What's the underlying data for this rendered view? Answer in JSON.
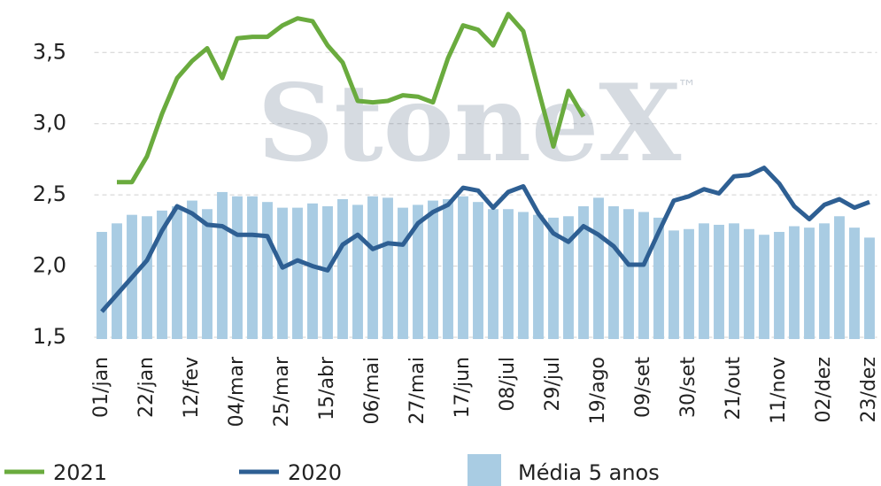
{
  "chart_data": {
    "type": "bar_line",
    "watermark": "StoneX",
    "watermark_mark": "™",
    "categories": [
      "01/jan",
      null,
      null,
      "22/jan",
      null,
      null,
      "12/fev",
      null,
      null,
      "04/mar",
      null,
      null,
      "25/mar",
      null,
      null,
      "15/abr",
      null,
      null,
      "06/mai",
      null,
      null,
      "27/mai",
      null,
      null,
      "17/jun",
      null,
      null,
      "08/jul",
      null,
      null,
      "29/jul",
      null,
      null,
      "19/ago",
      null,
      null,
      "09/set",
      null,
      null,
      "30/set",
      null,
      null,
      "21/out",
      null,
      null,
      "11/nov",
      null,
      null,
      "02/dez",
      null,
      null,
      "23/dez"
    ],
    "series": [
      {
        "name": "2021",
        "kind": "line",
        "color": "#6aab3e",
        "values": [
          null,
          2.59,
          2.59,
          2.77,
          3.07,
          3.32,
          3.44,
          3.53,
          3.32,
          3.6,
          3.61,
          3.61,
          3.69,
          3.74,
          3.72,
          3.55,
          3.43,
          3.16,
          3.15,
          3.16,
          3.2,
          3.19,
          3.15,
          3.46,
          3.69,
          3.66,
          3.55,
          3.77,
          3.65,
          3.24,
          2.84,
          3.23,
          3.05,
          null,
          null,
          null,
          null,
          null,
          null,
          null,
          null,
          null,
          null,
          null,
          null,
          null,
          null,
          null,
          null,
          null,
          null,
          null
        ]
      },
      {
        "name": "2020",
        "kind": "line",
        "color": "#2e5f93",
        "values": [
          1.68,
          1.8,
          1.92,
          2.04,
          2.25,
          2.42,
          2.37,
          2.29,
          2.28,
          2.22,
          2.22,
          2.21,
          1.99,
          2.04,
          2.0,
          1.97,
          2.15,
          2.22,
          2.12,
          2.16,
          2.15,
          2.3,
          2.38,
          2.43,
          2.55,
          2.53,
          2.41,
          2.52,
          2.56,
          2.37,
          2.23,
          2.17,
          2.28,
          2.22,
          2.14,
          2.01,
          2.01,
          2.24,
          2.46,
          2.49,
          2.54,
          2.51,
          2.63,
          2.64,
          2.69,
          2.58,
          2.42,
          2.33,
          2.43,
          2.47,
          2.41,
          2.45
        ]
      },
      {
        "name": "Média 5 anos",
        "kind": "bar",
        "color": "#a9cce3",
        "values": [
          2.24,
          2.3,
          2.36,
          2.35,
          2.39,
          2.42,
          2.46,
          2.4,
          2.52,
          2.49,
          2.49,
          2.45,
          2.41,
          2.41,
          2.44,
          2.42,
          2.47,
          2.43,
          2.49,
          2.48,
          2.41,
          2.43,
          2.46,
          2.47,
          2.49,
          2.45,
          2.4,
          2.4,
          2.38,
          2.36,
          2.34,
          2.35,
          2.42,
          2.48,
          2.42,
          2.4,
          2.38,
          2.34,
          2.25,
          2.26,
          2.3,
          2.29,
          2.3,
          2.26,
          2.22,
          2.24,
          2.28,
          2.27,
          2.3,
          2.35,
          2.27,
          2.2
        ]
      }
    ],
    "ylim": [
      1.5,
      3.85
    ],
    "yticks": [
      {
        "value": 1.5,
        "label": "1,5"
      },
      {
        "value": 2.0,
        "label": "2,0"
      },
      {
        "value": 2.5,
        "label": "2,5"
      },
      {
        "value": 3.0,
        "label": "3,0"
      },
      {
        "value": 3.5,
        "label": "3,5"
      }
    ],
    "grid": true,
    "legend": "bottom"
  }
}
